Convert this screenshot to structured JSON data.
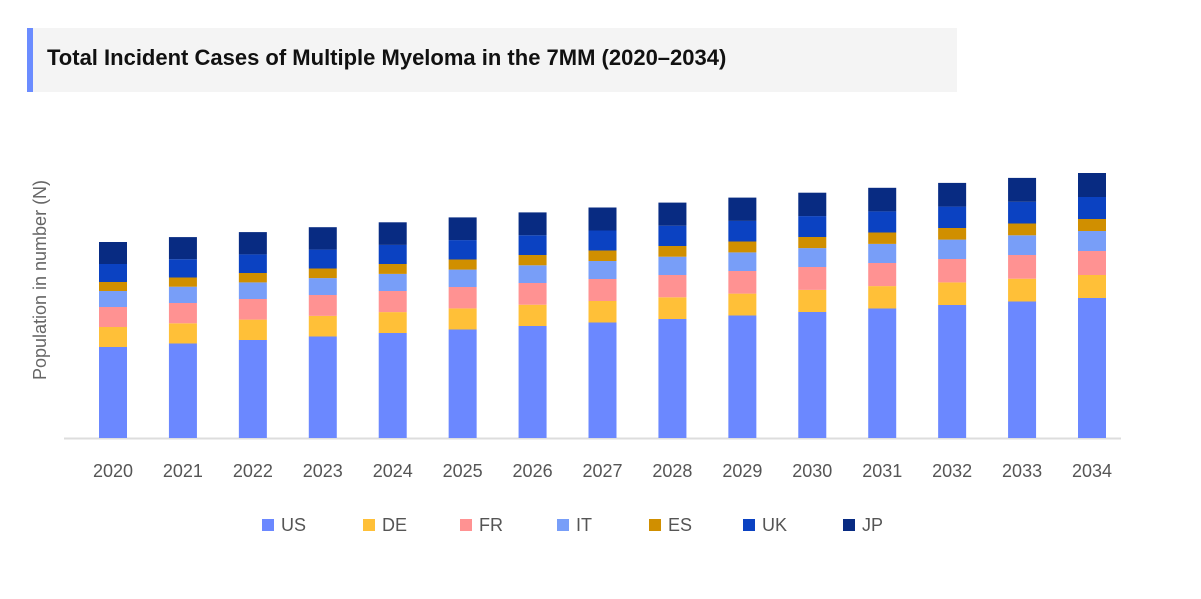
{
  "chart_data": {
    "type": "bar",
    "stacked": true,
    "title": "Total Incident Cases of Multiple Myeloma in the 7MM (2020–2034)",
    "xlabel": "",
    "ylabel": "Population in number (N)",
    "ylim": [
      0,
      265
    ],
    "grid": false,
    "legend_position": "bottom",
    "categories": [
      "2020",
      "2021",
      "2022",
      "2023",
      "2024",
      "2025",
      "2026",
      "2027",
      "2028",
      "2029",
      "2030",
      "2031",
      "2032",
      "2033",
      "2034"
    ],
    "series": [
      {
        "name": "US",
        "color": "#6b88ff",
        "values": [
          91,
          94.5,
          98,
          101.5,
          105,
          108.5,
          112,
          115.5,
          119,
          122.5,
          126,
          129.5,
          133,
          136.5,
          140
        ]
      },
      {
        "name": "DE",
        "color": "#ffc038",
        "values": [
          20,
          20.2,
          20.4,
          20.6,
          20.9,
          21.1,
          21.3,
          21.5,
          21.7,
          21.9,
          22.1,
          22.4,
          22.6,
          22.8,
          23
        ]
      },
      {
        "name": "FR",
        "color": "#ff9292",
        "values": [
          20,
          20.3,
          20.6,
          20.9,
          21.1,
          21.4,
          21.7,
          22,
          22.3,
          22.6,
          22.9,
          23.1,
          23.4,
          23.7,
          24
        ]
      },
      {
        "name": "IT",
        "color": "#789ef8",
        "values": [
          16,
          16.3,
          16.6,
          16.9,
          17.1,
          17.4,
          17.7,
          18,
          18.3,
          18.6,
          18.9,
          19.1,
          19.4,
          19.7,
          20
        ]
      },
      {
        "name": "ES",
        "color": "#d08f00",
        "values": [
          9,
          9.2,
          9.4,
          9.6,
          9.9,
          10.1,
          10.3,
          10.5,
          10.7,
          10.9,
          11.1,
          11.4,
          11.6,
          11.8,
          12
        ]
      },
      {
        "name": "UK",
        "color": "#0b42c2",
        "values": [
          18,
          18.3,
          18.6,
          18.9,
          19.1,
          19.4,
          19.7,
          20,
          20.3,
          20.6,
          20.9,
          21.1,
          21.4,
          21.7,
          22
        ]
      },
      {
        "name": "JP",
        "color": "#082b82",
        "values": [
          22,
          22.1,
          22.3,
          22.4,
          22.6,
          22.7,
          22.9,
          23,
          23.1,
          23.3,
          23.4,
          23.6,
          23.7,
          23.9,
          24
        ]
      }
    ]
  }
}
